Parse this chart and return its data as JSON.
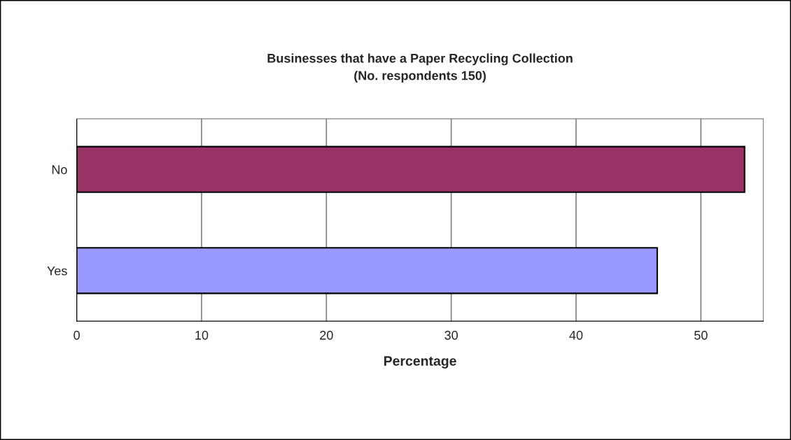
{
  "chart_data": {
    "type": "bar",
    "orientation": "horizontal",
    "title": "Businesses that have a Paper Recycling Collection\n(No. respondents 150)",
    "xlabel": "Percentage",
    "categories": [
      "No",
      "Yes"
    ],
    "values": [
      53.5,
      46.5
    ],
    "colors": [
      "#993366",
      "#9999ff"
    ],
    "xlim": [
      0,
      55
    ],
    "xticks": [
      0,
      10,
      20,
      30,
      40,
      50
    ],
    "grid": "x",
    "legend": false
  }
}
